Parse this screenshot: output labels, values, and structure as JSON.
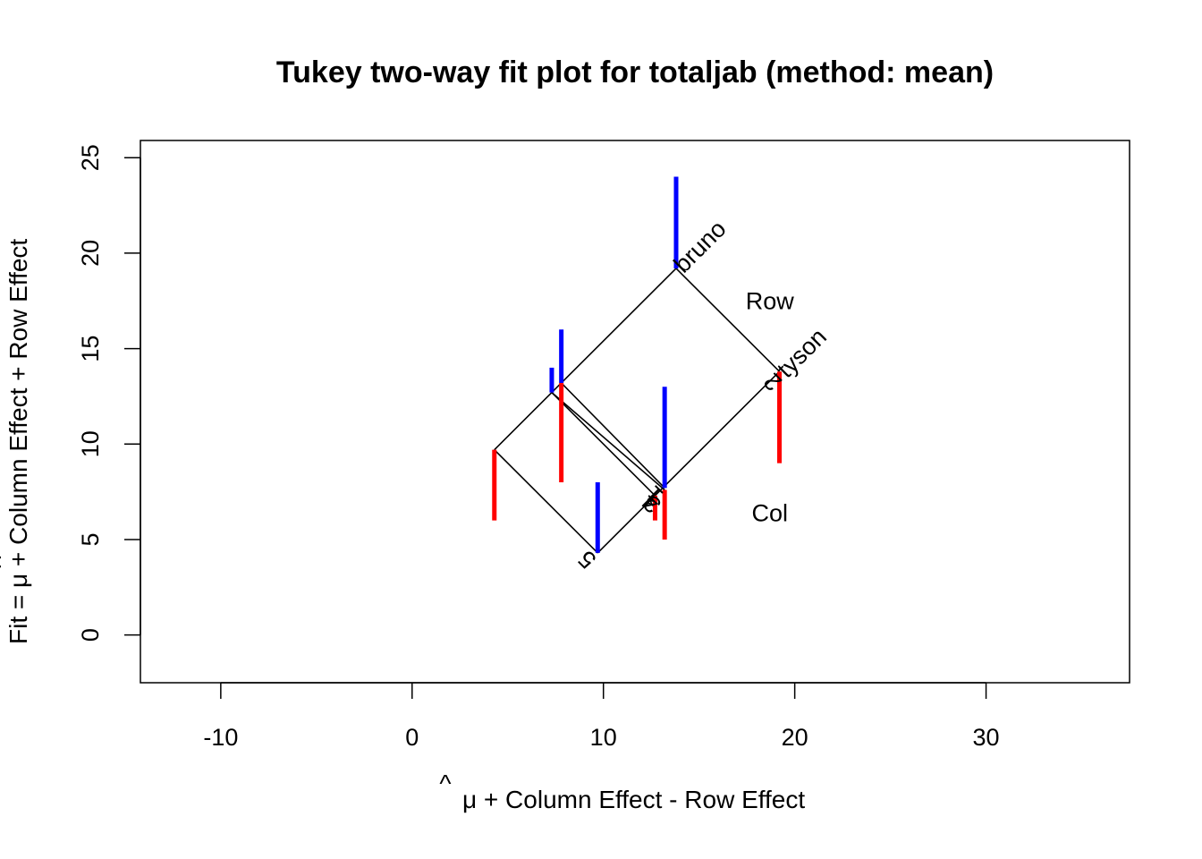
{
  "chart_data": {
    "type": "scatter",
    "title": "Tukey two-way fit plot for totaljab (method: mean)",
    "xlabel_suffix": " + Column Effect - Row Effect",
    "ylabel_prefix": "Fit = ",
    "ylabel_suffix": " + Column Effect + Row Effect",
    "mu_symbol": "μ",
    "mu_hat": "^",
    "xlim": [
      -14.2,
      37.5
    ],
    "ylim": [
      -2.5,
      25.9
    ],
    "xticks": [
      -10,
      0,
      10,
      20,
      30
    ],
    "yticks": [
      0,
      5,
      10,
      15,
      20,
      25
    ],
    "grid": false,
    "row_label": "Row",
    "col_label": "Col",
    "row_label_pos": [
      18.7,
      17.4
    ],
    "col_label_pos": [
      18.7,
      6.3
    ],
    "rows": [
      {
        "name": "bruno",
        "u": 19.2,
        "label_angle": -45
      },
      {
        "name": "tyson",
        "u": 13.8,
        "label_angle": -45
      }
    ],
    "cols": [
      {
        "name": "5",
        "v": 4.3,
        "label_angle": -135
      },
      {
        "name": "4",
        "v": 7.3,
        "label_angle": -135
      },
      {
        "name": "3",
        "v": 7.6,
        "label_angle": -135
      },
      {
        "name": "2",
        "v": 9.7,
        "label_angle": -135
      },
      {
        "name": "1",
        "v": 12.8,
        "label_angle": -135
      }
    ],
    "residuals": [
      {
        "x": 13.8,
        "fit": 19.2,
        "observed": 24.0,
        "sign": "positive"
      },
      {
        "x": 7.8,
        "fit": 13.2,
        "observed": 16.0,
        "sign": "positive"
      },
      {
        "x": 7.3,
        "fit": 12.7,
        "observed": 14.0,
        "sign": "positive"
      },
      {
        "x": 13.2,
        "fit": 7.7,
        "observed": 13.0,
        "sign": "positive"
      },
      {
        "x": 9.7,
        "fit": 4.3,
        "observed": 8.0,
        "sign": "positive"
      },
      {
        "x": 4.3,
        "fit": 9.7,
        "observed": 6.0,
        "sign": "negative"
      },
      {
        "x": 7.8,
        "fit": 13.2,
        "observed": 8.0,
        "sign": "negative"
      },
      {
        "x": 12.7,
        "fit": 7.3,
        "observed": 6.0,
        "sign": "negative"
      },
      {
        "x": 13.2,
        "fit": 7.6,
        "observed": 5.0,
        "sign": "negative"
      },
      {
        "x": 19.2,
        "fit": 13.8,
        "observed": 9.0,
        "sign": "negative"
      }
    ],
    "colors": {
      "positive": "#0000ff",
      "negative": "#ff0000",
      "lines": "#000000"
    }
  }
}
